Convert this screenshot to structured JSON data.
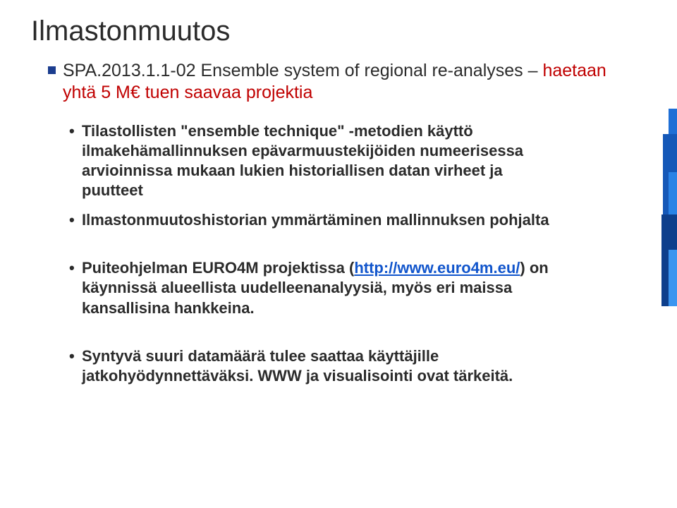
{
  "title": "Ilmastonmuutos",
  "subtitle": {
    "code": "SPA.2013.1.1-02 Ensemble system of regional re-analyses – ",
    "red_part": "haetaan yhtä 5 M€ tuen saavaa projektia"
  },
  "bullets": {
    "b1": "Tilastollisten \"ensemble technique\" -metodien käyttö ilmakehämallinnuksen epävarmuustekijöiden numeerisessa arvioinnissa mukaan lukien historiallisen datan virheet ja puutteet",
    "b2": "Ilmastonmuutoshistorian ymmärtäminen mallinnuksen pohjalta",
    "b3_pre": "Puiteohjelman EURO4M projektissa (",
    "b3_link_text": "http://www.euro4m.eu/",
    "b3_post": ") on käynnissä alueellista uudelleenanalyysiä, myös eri maissa kansallisina hankkeina.",
    "b4": "Syntyvä suuri datamäärä tulee saattaa käyttäjille jatkohyödynnettäväksi. WWW ja visualisointi ovat tärkeitä."
  },
  "colors": {
    "accent_square": "#1b3d8f",
    "red": "#c00000",
    "link": "#1155cc",
    "text": "#2b2b2b",
    "background": "#ffffff"
  },
  "deco_bars": [
    {
      "color": "#1f6fd6"
    },
    {
      "color": "#1558b8"
    },
    {
      "color": "#2a83e6"
    },
    {
      "color": "#0e3f8c"
    },
    {
      "color": "#3b95f0"
    }
  ]
}
